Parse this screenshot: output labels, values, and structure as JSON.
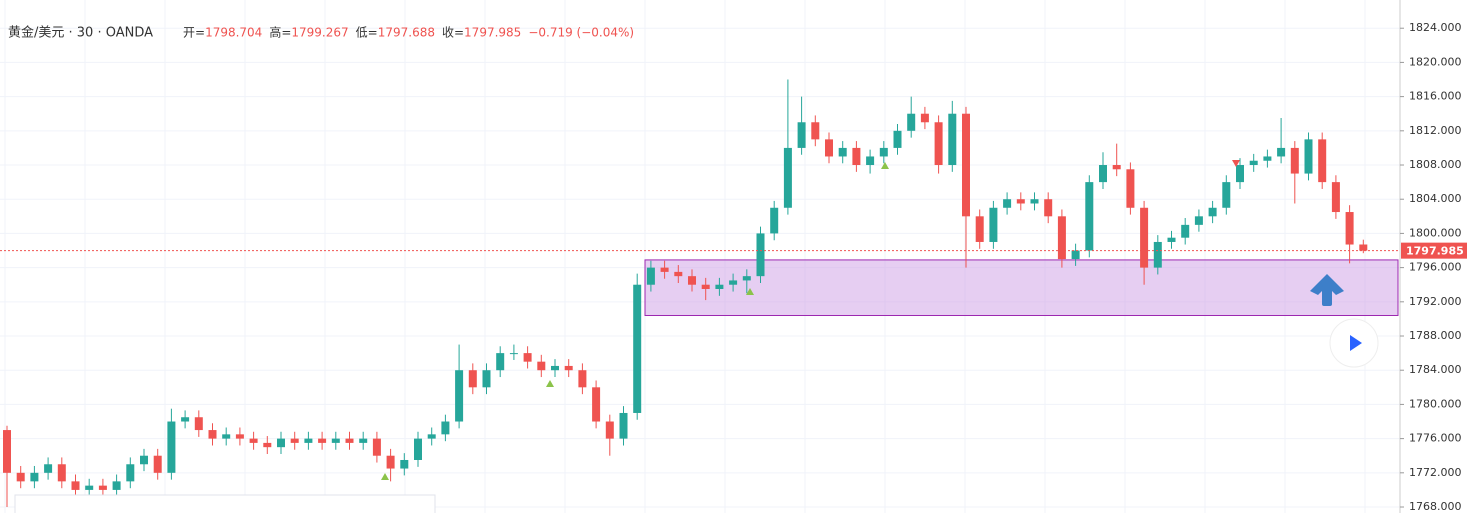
{
  "chart_data": {
    "type": "candlestick",
    "title": "黄金/美元 · 30 · OANDA",
    "ohlc_header": [
      {
        "label": "开=",
        "value": "1798.704"
      },
      {
        "label": "高=",
        "value": "1799.267"
      },
      {
        "label": "低=",
        "value": "1797.688"
      },
      {
        "label": "收=",
        "value": "1797.985"
      }
    ],
    "change": "−0.719 (−0.04%)",
    "up_color": "#26a69a",
    "down_color": "#ef5350",
    "open": [
      1777,
      1772,
      1771,
      1772,
      1773,
      1771,
      1770,
      1770.5,
      1770,
      1771,
      1773,
      1774,
      1772,
      1778,
      1778.5,
      1777,
      1776,
      1776.5,
      1776,
      1775.5,
      1775,
      1776,
      1775.5,
      1776,
      1775.5,
      1776,
      1775.5,
      1776,
      1774,
      1772.5,
      1773.5,
      1776,
      1776.5,
      1778,
      1784,
      1782,
      1784,
      1786,
      1786,
      1785,
      1784,
      1784.5,
      1784,
      1782,
      1778,
      1776,
      1779,
      1794,
      1796,
      1795.5,
      1795,
      1794,
      1793.5,
      1794,
      1794.5,
      1795,
      1800,
      1803,
      1810,
      1813,
      1811,
      1809,
      1810,
      1808,
      1809,
      1810,
      1812,
      1814,
      1813,
      1808,
      1814,
      1802,
      1799,
      1803,
      1804,
      1803.5,
      1804,
      1802,
      1797,
      1798,
      1806,
      1808,
      1807.5,
      1803,
      1796,
      1799,
      1799.5,
      1801,
      1802,
      1803,
      1806,
      1808,
      1808.5,
      1809,
      1810,
      1807,
      1811,
      1806,
      1802.5,
      1798.704
    ],
    "high": [
      1777.5,
      1772.8,
      1772.8,
      1773.8,
      1773.8,
      1771.8,
      1771.3,
      1771.3,
      1771.8,
      1773.8,
      1774.8,
      1774.8,
      1779.5,
      1779.3,
      1779.3,
      1777.8,
      1777.3,
      1777.3,
      1776.8,
      1776.3,
      1776.8,
      1776.8,
      1776.8,
      1776.8,
      1776.8,
      1776.8,
      1776.8,
      1776.8,
      1774.8,
      1774.3,
      1776.8,
      1777.3,
      1778.8,
      1787,
      1784.8,
      1784.8,
      1786.8,
      1787,
      1786.8,
      1785.8,
      1785.3,
      1785.3,
      1784.8,
      1782.8,
      1778.8,
      1779.8,
      1795.3,
      1796.8,
      1796.8,
      1796.3,
      1795.8,
      1794.8,
      1794.8,
      1795.3,
      1795.8,
      1800.8,
      1803.8,
      1818,
      1816,
      1813.8,
      1811.8,
      1810.8,
      1810.8,
      1809.8,
      1810.8,
      1812.8,
      1816,
      1814.8,
      1813.8,
      1815.5,
      1814.8,
      1802.8,
      1803.8,
      1804.8,
      1804.8,
      1804.8,
      1804.8,
      1802.8,
      1798.8,
      1806.8,
      1809.5,
      1810.5,
      1808.3,
      1803.8,
      1799.8,
      1800.3,
      1801.8,
      1802.8,
      1803.8,
      1806.8,
      1808.8,
      1809.3,
      1809.8,
      1813.5,
      1810.8,
      1811.8,
      1811.8,
      1806.8,
      1803.3,
      1799.267
    ],
    "low": [
      1768,
      1770.2,
      1770.2,
      1771.2,
      1770.2,
      1769.2,
      1769.2,
      1769.2,
      1769.2,
      1770.2,
      1772.2,
      1771.2,
      1771.2,
      1777.2,
      1776.2,
      1775.2,
      1775.2,
      1775.2,
      1774.7,
      1774.2,
      1774.2,
      1774.7,
      1774.7,
      1774.7,
      1774.7,
      1774.7,
      1774.7,
      1773.2,
      1771,
      1771.7,
      1772.7,
      1775.2,
      1775.7,
      1777.2,
      1781.2,
      1781.2,
      1783.2,
      1785.2,
      1784.2,
      1783.2,
      1783.2,
      1783.2,
      1781.2,
      1777.2,
      1774,
      1775.2,
      1778.2,
      1793.2,
      1794.7,
      1794.2,
      1793.2,
      1792.2,
      1792.7,
      1793.2,
      1793,
      1794.2,
      1799.2,
      1802.2,
      1809.2,
      1810.2,
      1808.2,
      1808.2,
      1807.2,
      1807,
      1808.2,
      1809.2,
      1811.2,
      1812.2,
      1807,
      1807.2,
      1796,
      1798.2,
      1798.2,
      1802.2,
      1802.7,
      1802.7,
      1801.2,
      1796,
      1796.2,
      1797.2,
      1805.2,
      1806.7,
      1802.2,
      1794,
      1795.2,
      1798.2,
      1798.7,
      1800.2,
      1801.2,
      1802.2,
      1805.2,
      1807.2,
      1807.7,
      1808.2,
      1803.5,
      1806.2,
      1805.2,
      1801.7,
      1796.5,
      1797.688
    ],
    "close": [
      1772,
      1771,
      1772,
      1773,
      1771,
      1770,
      1770.5,
      1770,
      1771,
      1773,
      1774,
      1772,
      1778,
      1778.5,
      1777,
      1776,
      1776.5,
      1776,
      1775.5,
      1775,
      1776,
      1775.5,
      1776,
      1775.5,
      1776,
      1775.5,
      1776,
      1774,
      1772.5,
      1773.5,
      1776,
      1776.5,
      1778,
      1784,
      1782,
      1784,
      1786,
      1786,
      1785,
      1784,
      1784.5,
      1784,
      1782,
      1778,
      1776,
      1779,
      1794,
      1796,
      1795.5,
      1795,
      1794,
      1793.5,
      1794,
      1794.5,
      1795,
      1800,
      1803,
      1810,
      1813,
      1811,
      1809,
      1810,
      1808,
      1809,
      1810,
      1812,
      1814,
      1813,
      1808,
      1814,
      1802,
      1799,
      1803,
      1804,
      1803.5,
      1804,
      1802,
      1797,
      1798,
      1806,
      1808,
      1807.5,
      1803,
      1796,
      1799,
      1799.5,
      1801,
      1802,
      1803,
      1806,
      1808,
      1808.5,
      1809,
      1810,
      1807,
      1811,
      1806,
      1802.5,
      1798.7,
      1797.985
    ],
    "ylim": [
      1767.3,
      1827.3
    ],
    "yticks": [
      {
        "value": 1768,
        "label": "1768.000"
      },
      {
        "value": 1772,
        "label": "1772.000"
      },
      {
        "value": 1776,
        "label": "1776.000"
      },
      {
        "value": 1780,
        "label": "1780.000"
      },
      {
        "value": 1784,
        "label": "1784.000"
      },
      {
        "value": 1788,
        "label": "1788.000"
      },
      {
        "value": 1792,
        "label": "1792.000"
      },
      {
        "value": 1796,
        "label": "1796.000"
      },
      {
        "value": 1800,
        "label": "1800.000"
      },
      {
        "value": 1804,
        "label": "1804.000"
      },
      {
        "value": 1808,
        "label": "1808.000"
      },
      {
        "value": 1812,
        "label": "1812.000"
      },
      {
        "value": 1816,
        "label": "1816.000"
      },
      {
        "value": 1820,
        "label": "1820.000"
      },
      {
        "value": 1824,
        "label": "1824.000"
      }
    ],
    "grid": true,
    "zone": {
      "top": 1796.9,
      "bottom": 1790.4,
      "color": "#ce9ee6"
    }
  }
}
